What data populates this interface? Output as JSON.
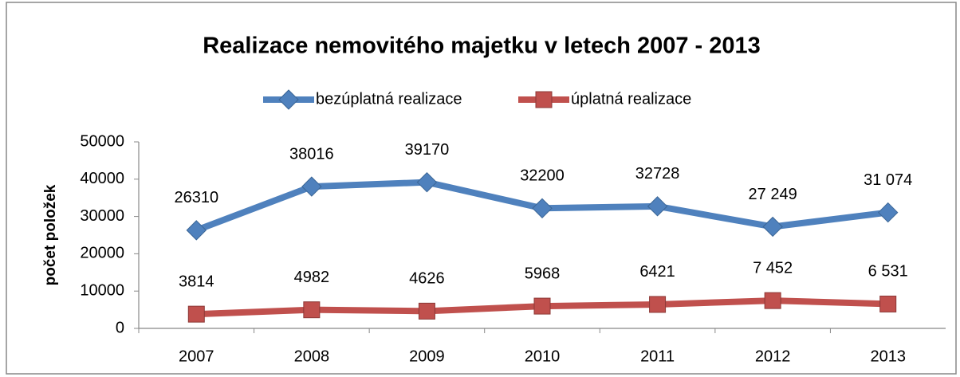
{
  "chart_data": {
    "type": "line",
    "title": "Realizace nemovitého majetku v letech 2007 - 2013",
    "y_label": "počet položek",
    "categories": [
      "2007",
      "2008",
      "2009",
      "2010",
      "2011",
      "2012",
      "2013"
    ],
    "series": [
      {
        "name": "bezúplatná realizace",
        "color": "#4f81bd",
        "marker": "diamond",
        "values": [
          26310,
          38016,
          39170,
          32200,
          32728,
          27249,
          31074
        ],
        "value_labels": [
          "26310",
          "38016",
          "39170",
          "32200",
          "32728",
          "27 249",
          "31 074"
        ]
      },
      {
        "name": "úplatná realizace",
        "color": "#c0504d",
        "marker": "square",
        "values": [
          3814,
          4982,
          4626,
          5968,
          6421,
          7452,
          6531
        ],
        "value_labels": [
          "3814",
          "4982",
          "4626",
          "5968",
          "6421",
          "7 452",
          "6 531"
        ]
      }
    ],
    "ylim": [
      0,
      50000
    ],
    "yticks": [
      0,
      10000,
      20000,
      30000,
      40000,
      50000
    ],
    "grid": false,
    "legend": "top"
  }
}
